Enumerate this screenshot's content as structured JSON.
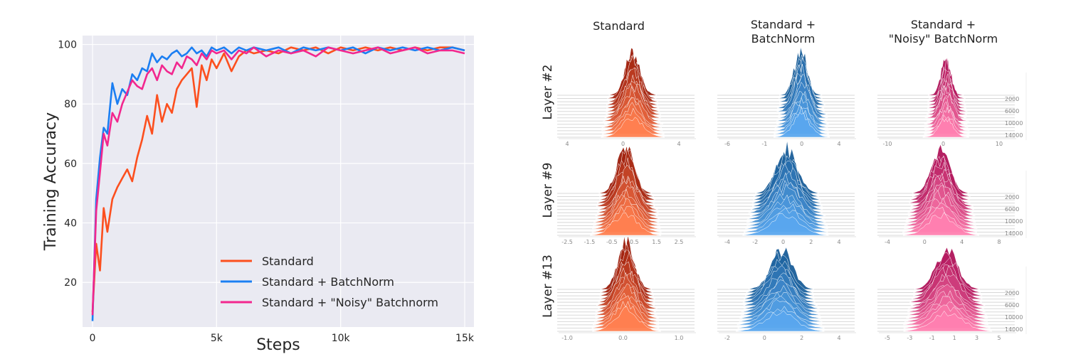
{
  "chart_data": [
    {
      "type": "line",
      "xlabel": "Steps",
      "ylabel": "Training Accuracy",
      "xlim": [
        0,
        15000
      ],
      "ylim": [
        5,
        103
      ],
      "x_ticks": [
        {
          "value": 0,
          "label": "0"
        },
        {
          "value": 5000,
          "label": "5k"
        },
        {
          "value": 10000,
          "label": "10k"
        },
        {
          "value": 15000,
          "label": "15k"
        }
      ],
      "y_ticks": [
        20,
        40,
        60,
        80,
        100
      ],
      "grid": true,
      "legend_position": "bottom-right",
      "series": [
        {
          "name": "Standard",
          "color": "#fc4f1e",
          "x": [
            0,
            150,
            300,
            450,
            600,
            800,
            1000,
            1200,
            1400,
            1600,
            1800,
            2000,
            2200,
            2400,
            2600,
            2800,
            3000,
            3200,
            3400,
            3600,
            3800,
            4000,
            4200,
            4400,
            4600,
            4800,
            5000,
            5300,
            5600,
            5900,
            6200,
            6500,
            7000,
            7500,
            8000,
            8500,
            9000,
            9500,
            10000,
            10500,
            11000,
            11500,
            12000,
            12500,
            13000,
            13500,
            14000,
            14500,
            15000
          ],
          "y": [
            10,
            33,
            24,
            45,
            37,
            48,
            52,
            55,
            58,
            54,
            62,
            68,
            76,
            70,
            83,
            74,
            80,
            77,
            85,
            88,
            90,
            92,
            79,
            93,
            88,
            95,
            92,
            97,
            91,
            96,
            98,
            97,
            98,
            97,
            99,
            98,
            99,
            97,
            99,
            98,
            99,
            98,
            99,
            98,
            99,
            98,
            99,
            99,
            98
          ]
        },
        {
          "name": "Standard + BatchNorm",
          "color": "#1b7ef2",
          "x": [
            0,
            150,
            300,
            450,
            600,
            800,
            1000,
            1200,
            1400,
            1600,
            1800,
            2000,
            2200,
            2400,
            2600,
            2800,
            3000,
            3200,
            3400,
            3600,
            3800,
            4000,
            4200,
            4400,
            4600,
            4800,
            5000,
            5300,
            5600,
            5900,
            6200,
            6500,
            7000,
            7500,
            8000,
            8500,
            9000,
            9500,
            10000,
            10500,
            11000,
            11500,
            12000,
            12500,
            13000,
            13500,
            14000,
            14500,
            15000
          ],
          "y": [
            7,
            48,
            62,
            72,
            70,
            87,
            80,
            85,
            83,
            90,
            88,
            92,
            91,
            97,
            94,
            96,
            95,
            97,
            98,
            96,
            97,
            99,
            97,
            98,
            96,
            99,
            98,
            99,
            97,
            99,
            98,
            99,
            98,
            99,
            97,
            99,
            98,
            99,
            98,
            99,
            97,
            99,
            98,
            99,
            98,
            99,
            98,
            99,
            98
          ]
        },
        {
          "name": "Standard + \"Noisy\" Batchnorm",
          "color": "#f2278e",
          "x": [
            0,
            150,
            300,
            450,
            600,
            800,
            1000,
            1200,
            1400,
            1600,
            1800,
            2000,
            2200,
            2400,
            2600,
            2800,
            3000,
            3200,
            3400,
            3600,
            3800,
            4000,
            4200,
            4400,
            4600,
            4800,
            5000,
            5300,
            5600,
            5900,
            6200,
            6500,
            7000,
            7500,
            8000,
            8500,
            9000,
            9500,
            10000,
            10500,
            11000,
            11500,
            12000,
            12500,
            13000,
            13500,
            14000,
            14500,
            15000
          ],
          "y": [
            9,
            44,
            57,
            70,
            66,
            77,
            74,
            80,
            84,
            88,
            86,
            85,
            90,
            92,
            88,
            93,
            91,
            90,
            94,
            92,
            96,
            95,
            93,
            97,
            95,
            98,
            97,
            98,
            95,
            98,
            97,
            99,
            96,
            98,
            97,
            98,
            96,
            99,
            98,
            97,
            98,
            99,
            97,
            98,
            99,
            97,
            98,
            98,
            97
          ]
        }
      ]
    },
    {
      "type": "area",
      "subtype": "ridgeline-histogram-grid",
      "columns": [
        "Standard",
        "Standard +\nBatchNorm",
        "Standard +\n\"Noisy\" BatchNorm"
      ],
      "column_title_lines": [
        [
          "Standard"
        ],
        [
          "Standard +",
          "BatchNorm"
        ],
        [
          "Standard +",
          "\"Noisy\" BatchNorm"
        ]
      ],
      "rows": [
        "Layer #2",
        "Layer #9",
        "Layer #13"
      ],
      "column_colors": [
        {
          "dark": "#9c1d0c",
          "light": "#ff7f50"
        },
        {
          "dark": "#1a5e99",
          "light": "#5aa7ee"
        },
        {
          "dark": "#b0145a",
          "light": "#ff7fb0"
        }
      ],
      "step_labels": [
        "2000",
        "6000",
        "10000",
        "14000"
      ],
      "cells": [
        [
          {
            "ticks": [
              "4",
              "0",
              "4"
            ],
            "center": 0.55,
            "width": 0.42,
            "peak": 0.9
          },
          {
            "ticks": [
              "-6",
              "-1",
              "0",
              "4"
            ],
            "center": 0.62,
            "width": 0.36,
            "peak": 0.95
          },
          {
            "ticks": [
              "-10",
              "0",
              "10"
            ],
            "center": 0.5,
            "width": 0.28,
            "peak": 0.72
          }
        ],
        [
          {
            "ticks": [
              "-2.5",
              "-1.5",
              "-0.5",
              "0.5",
              "1.5",
              "2.5"
            ],
            "center": 0.5,
            "width": 0.48,
            "peak": 0.98
          },
          {
            "ticks": [
              "-4",
              "-2",
              "0",
              "2",
              "4"
            ],
            "center": 0.5,
            "width": 0.6,
            "peak": 0.92
          },
          {
            "ticks": [
              "-4",
              "0",
              "4",
              "8"
            ],
            "center": 0.45,
            "width": 0.52,
            "peak": 0.9
          }
        ],
        [
          {
            "ticks": [
              "-1.0",
              "0.0",
              "1.0"
            ],
            "center": 0.5,
            "width": 0.46,
            "peak": 0.98
          },
          {
            "ticks": [
              "-2",
              "0",
              "2",
              "4"
            ],
            "center": 0.45,
            "width": 0.62,
            "peak": 0.8
          },
          {
            "ticks": [
              "-5",
              "-3",
              "-1",
              "1",
              "3",
              "5"
            ],
            "center": 0.5,
            "width": 0.62,
            "peak": 0.78
          }
        ]
      ]
    }
  ]
}
